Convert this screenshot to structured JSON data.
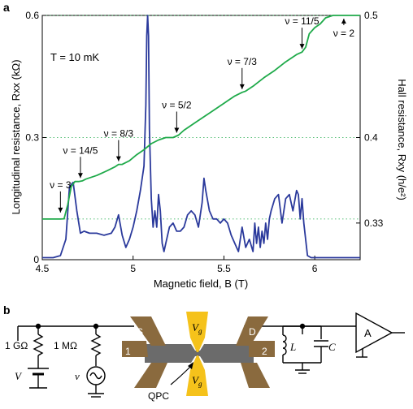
{
  "panel_a_label": "a",
  "panel_b_label": "b",
  "temperature_text": "T = 10 mK",
  "chart_data": {
    "type": "line",
    "xlabel": "Magnetic field, B (T)",
    "ylabel_left": "Longitudinal resistance, Rxx (kΩ)",
    "ylabel_right": "Hall resistance, Rxy (h/e²)",
    "xlim": [
      4.5,
      6.25
    ],
    "ylim_left": [
      0,
      0.6
    ],
    "ylim_right": [
      0.3,
      0.5
    ],
    "x_ticks": [
      "4.5",
      "5",
      "5.5",
      "6"
    ],
    "y_left_ticks": [
      "0",
      "0.3",
      "0.6"
    ],
    "y_right_ticks": [
      "0.33",
      "0.4",
      "0.5"
    ],
    "plateau_reference_levels": [
      0.3333,
      0.4,
      0.5
    ],
    "series": [
      {
        "axis": "left",
        "color": "#2b3a9c",
        "x": [
          4.5,
          4.56,
          4.6,
          4.63,
          4.65,
          4.67,
          4.69,
          4.71,
          4.73,
          4.76,
          4.8,
          4.84,
          4.88,
          4.9,
          4.92,
          4.94,
          4.96,
          4.98,
          5.0,
          5.02,
          5.04,
          5.06,
          5.07,
          5.075,
          5.08,
          5.085,
          5.09,
          5.1,
          5.11,
          5.12,
          5.13,
          5.14,
          5.15,
          5.16,
          5.17,
          5.18,
          5.2,
          5.22,
          5.24,
          5.26,
          5.28,
          5.3,
          5.32,
          5.34,
          5.36,
          5.38,
          5.39,
          5.4,
          5.42,
          5.44,
          5.46,
          5.48,
          5.5,
          5.52,
          5.54,
          5.56,
          5.58,
          5.6,
          5.62,
          5.64,
          5.66,
          5.67,
          5.68,
          5.69,
          5.7,
          5.71,
          5.72,
          5.73,
          5.74,
          5.75,
          5.76,
          5.78,
          5.8,
          5.82,
          5.84,
          5.86,
          5.88,
          5.9,
          5.91,
          5.92,
          5.93,
          5.94,
          5.96,
          5.98,
          6.0,
          6.25
        ],
        "y": [
          0.005,
          0.005,
          0.01,
          0.05,
          0.18,
          0.19,
          0.12,
          0.065,
          0.07,
          0.065,
          0.065,
          0.06,
          0.065,
          0.08,
          0.11,
          0.06,
          0.03,
          0.05,
          0.08,
          0.12,
          0.17,
          0.23,
          0.38,
          0.55,
          0.6,
          0.55,
          0.32,
          0.15,
          0.08,
          0.12,
          0.08,
          0.16,
          0.12,
          0.04,
          0.02,
          0.04,
          0.08,
          0.09,
          0.07,
          0.07,
          0.08,
          0.11,
          0.12,
          0.11,
          0.08,
          0.14,
          0.2,
          0.17,
          0.12,
          0.1,
          0.1,
          0.09,
          0.1,
          0.09,
          0.06,
          0.04,
          0.02,
          0.08,
          0.03,
          0.05,
          0.02,
          0.09,
          0.04,
          0.08,
          0.03,
          0.07,
          0.04,
          0.09,
          0.05,
          0.1,
          0.12,
          0.15,
          0.16,
          0.09,
          0.15,
          0.16,
          0.12,
          0.17,
          0.16,
          0.1,
          0.15,
          0.09,
          0.01,
          0.005,
          0.005,
          0.005
        ]
      },
      {
        "axis": "right",
        "color": "#1faa4a",
        "x": [
          4.5,
          4.6,
          4.62,
          4.64,
          4.66,
          4.68,
          4.7,
          4.72,
          4.74,
          4.8,
          4.86,
          4.9,
          4.92,
          4.94,
          4.98,
          5.02,
          5.06,
          5.1,
          5.14,
          5.18,
          5.22,
          5.25,
          5.28,
          5.34,
          5.4,
          5.46,
          5.52,
          5.56,
          5.6,
          5.62,
          5.66,
          5.72,
          5.78,
          5.84,
          5.9,
          5.93,
          5.95,
          5.97,
          6.0,
          6.03,
          6.06,
          6.1,
          6.15,
          6.25
        ],
        "y": [
          0.3333,
          0.3333,
          0.3335,
          0.345,
          0.36,
          0.364,
          0.364,
          0.3645,
          0.366,
          0.369,
          0.373,
          0.376,
          0.378,
          0.378,
          0.381,
          0.386,
          0.39,
          0.395,
          0.398,
          0.4,
          0.4,
          0.402,
          0.406,
          0.412,
          0.418,
          0.424,
          0.43,
          0.434,
          0.437,
          0.438,
          0.442,
          0.449,
          0.455,
          0.462,
          0.468,
          0.47,
          0.474,
          0.485,
          0.49,
          0.493,
          0.498,
          0.5,
          0.5,
          0.5
        ]
      }
    ],
    "annotations": [
      {
        "label": "ν = 3",
        "x": 4.6
      },
      {
        "label": "ν = 14/5",
        "x": 4.71
      },
      {
        "label": "ν = 8/3",
        "x": 4.92
      },
      {
        "label": "ν = 5/2",
        "x": 5.24
      },
      {
        "label": "ν = 7/3",
        "x": 5.6
      },
      {
        "label": "ν = 11/5",
        "x": 5.93
      },
      {
        "label": "ν = 2",
        "x": 6.16
      }
    ]
  },
  "circuit": {
    "resistor_1_label": "1 GΩ",
    "resistor_2_label": "1 MΩ",
    "dc_source_label": "V",
    "ac_source_label": "v",
    "source_contact_label": "S",
    "drain_contact_label": "D",
    "contact_1_label": "1",
    "contact_2_label": "2",
    "gate_top_label": "V",
    "gate_top_sub": "g",
    "gate_bottom_label": "V",
    "gate_bottom_sub": "g",
    "qpc_label": "QPC",
    "inductor_label": "L",
    "capacitor_label": "C",
    "amplifier_label": "A"
  }
}
